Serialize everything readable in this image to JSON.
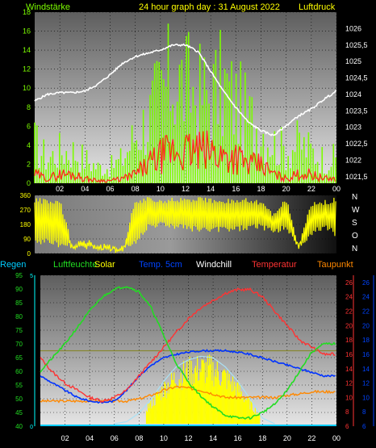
{
  "colors": {
    "wind": "#7CFC00",
    "gust_bar": "#7CFC00",
    "wind_dark": "#FF2A1A",
    "pressure": "#FFFFFF",
    "direction": "#FFFF00",
    "humidity": "#22DD22",
    "solar": "#FFFF00",
    "temp5cm": "#0033FF",
    "windchill": "#FFFFFF",
    "temperature": "#FF3333",
    "dewpoint": "#FF8800",
    "rain": "#00CCFF",
    "olive": "#888833",
    "axis_left": "#00FFFF",
    "axis_temp": "#FF3333",
    "axis_t5": "#0044FF"
  },
  "panel1": {
    "label_wind": "Windstärke",
    "title": "24 hour graph day : 31 August 2022",
    "label_pressure": "Luftdruck"
  },
  "panel3": {
    "labels": {
      "rain": "Regen",
      "humidity": "Luftfeuchte",
      "solar": "Solar",
      "temp5cm": "Temp. 5cm",
      "windchill": "Windchill",
      "temperature": "Temperatur",
      "dewpoint": "Taupunkt"
    }
  },
  "chart_data": [
    {
      "type": "line",
      "title": "24 hour graph day : 31 August 2022",
      "x_label_ticks": [
        "02",
        "04",
        "06",
        "08",
        "10",
        "12",
        "14",
        "16",
        "18",
        "20",
        "22",
        "00"
      ],
      "xlim_hours": [
        0,
        24
      ],
      "y_left": {
        "label": "Windstärke",
        "ylim": [
          0,
          18
        ],
        "ticks": [
          "0",
          "2",
          "4",
          "6",
          "8",
          "10",
          "12",
          "14",
          "16",
          "18"
        ]
      },
      "y_right": {
        "label": "Luftdruck",
        "ylim": [
          1021.3,
          1026.5
        ],
        "ticks": [
          "1021,5",
          "1022",
          "1022,5",
          "1023",
          "1023,5",
          "1024",
          "1024,5",
          "1025",
          "1025,5",
          "1026"
        ]
      },
      "series": [
        {
          "name": "Windstärke",
          "hours": [
            0,
            1,
            2,
            3,
            4,
            5,
            6,
            7,
            8,
            9,
            10,
            11,
            12,
            13,
            14,
            15,
            16,
            17,
            18,
            19,
            20,
            21,
            22,
            23,
            24
          ],
          "gust": [
            5,
            3,
            4,
            4,
            3,
            2,
            2,
            3,
            6,
            8,
            11,
            13,
            12,
            11,
            11,
            12,
            10,
            8,
            7,
            5,
            4,
            5,
            4,
            3,
            3
          ],
          "mean": [
            1,
            0.5,
            1,
            1,
            0.5,
            0.3,
            0.3,
            0.5,
            1,
            2,
            3,
            3.5,
            3.5,
            3.5,
            3.5,
            3,
            3,
            2,
            2,
            1,
            0.5,
            1,
            1,
            0.5,
            0.5
          ]
        },
        {
          "name": "Luftdruck",
          "hours": [
            0,
            1,
            2,
            3,
            4,
            5,
            6,
            7,
            8,
            9,
            10,
            11,
            12,
            13,
            14,
            15,
            16,
            17,
            18,
            19,
            20,
            21,
            22,
            23,
            24
          ],
          "values": [
            1023.8,
            1024.0,
            1024.05,
            1024.05,
            1024.1,
            1024.3,
            1024.6,
            1024.95,
            1025.15,
            1025.25,
            1025.35,
            1025.5,
            1025.5,
            1025.3,
            1024.7,
            1024.1,
            1023.6,
            1023.15,
            1022.9,
            1022.75,
            1023.05,
            1023.35,
            1023.55,
            1023.85,
            1024.1
          ]
        }
      ]
    },
    {
      "type": "line",
      "y_label_ticks": [
        "0",
        "90",
        "180",
        "270",
        "360"
      ],
      "ylim": [
        0,
        360
      ],
      "compass_labels": [
        "N",
        "W",
        "S",
        "O",
        "N"
      ],
      "series": [
        {
          "hours": [
            0,
            1,
            2,
            3,
            4,
            5,
            6,
            7,
            8,
            9,
            10,
            11,
            12,
            13,
            14,
            15,
            16,
            17,
            18,
            19,
            20,
            21,
            22,
            23,
            24
          ],
          "direction_low": [
            40,
            60,
            30,
            30,
            20,
            20,
            20,
            20,
            40,
            150,
            160,
            150,
            140,
            130,
            120,
            130,
            130,
            140,
            150,
            120,
            140,
            20,
            100,
            150,
            100
          ],
          "direction_high": [
            350,
            340,
            340,
            60,
            100,
            60,
            40,
            40,
            340,
            350,
            350,
            350,
            350,
            350,
            350,
            350,
            340,
            350,
            330,
            250,
            350,
            60,
            330,
            340,
            350
          ]
        }
      ]
    },
    {
      "type": "line",
      "ylim_humidity": [
        40,
        95
      ],
      "humidity_ticks": [
        "40",
        "45",
        "50",
        "55",
        "60",
        "65",
        "70",
        "75",
        "80",
        "85",
        "90",
        "95"
      ],
      "rain_ticks": [
        "0",
        "5"
      ],
      "temperature_ticks": [
        "6",
        "8",
        "10",
        "12",
        "14",
        "16",
        "18",
        "20",
        "22",
        "24",
        "26"
      ],
      "temp5cm_ticks": [
        "6",
        "8",
        "10",
        "12",
        "14",
        "16",
        "18",
        "20",
        "22",
        "24",
        "26"
      ],
      "ylim_temperature": [
        6,
        27
      ],
      "series": [
        {
          "name": "Luftfeuchte",
          "hours": [
            0,
            1,
            2,
            3,
            4,
            5,
            6,
            7,
            8,
            9,
            10,
            11,
            12,
            13,
            14,
            15,
            16,
            17,
            18,
            19,
            20,
            21,
            22,
            23,
            24
          ],
          "values": [
            60,
            65,
            70,
            76,
            82,
            87,
            90,
            91,
            89,
            83,
            73,
            63,
            56,
            51,
            47,
            44,
            43,
            43,
            45,
            48,
            53,
            60,
            67,
            70,
            70
          ]
        },
        {
          "name": "Temperatur",
          "hours": [
            0,
            1,
            2,
            3,
            4,
            5,
            6,
            7,
            8,
            9,
            10,
            11,
            12,
            13,
            14,
            15,
            16,
            17,
            18,
            19,
            20,
            21,
            22,
            23,
            24
          ],
          "values": [
            15.5,
            13.5,
            12,
            11,
            10,
            9.5,
            10,
            11,
            13,
            15,
            17,
            19,
            21,
            22.5,
            23.5,
            24.5,
            25,
            25,
            24,
            22,
            20,
            18,
            17,
            16,
            16
          ]
        },
        {
          "name": "Temp. 5cm",
          "hours": [
            0,
            1,
            2,
            3,
            4,
            5,
            6,
            7,
            8,
            9,
            10,
            11,
            12,
            13,
            14,
            15,
            16,
            17,
            18,
            19,
            20,
            21,
            22,
            23,
            24
          ],
          "values": [
            13,
            12,
            11,
            10,
            9.5,
            9.3,
            9.5,
            11,
            13,
            14.5,
            15.5,
            16,
            16.3,
            16.5,
            16.5,
            16.5,
            16.3,
            16,
            15.5,
            15,
            14.5,
            14,
            13.5,
            13,
            13
          ]
        },
        {
          "name": "Taupunkt",
          "hours": [
            0,
            1,
            2,
            3,
            4,
            5,
            6,
            7,
            8,
            9,
            10,
            11,
            12,
            13,
            14,
            15,
            16,
            17,
            18,
            19,
            20,
            21,
            22,
            23,
            24
          ],
          "values": [
            9.5,
            9.5,
            9.5,
            9.5,
            9.5,
            9.5,
            9.5,
            9.5,
            9.8,
            10.3,
            11,
            11.5,
            11.3,
            11,
            10.5,
            10,
            10,
            10,
            10,
            10,
            10.3,
            10.5,
            10.8,
            10.8,
            10.8
          ]
        },
        {
          "name": "Solar",
          "hours": [
            6,
            7,
            8,
            9,
            10,
            11,
            12,
            13,
            14,
            15,
            16,
            17,
            18,
            19
          ],
          "values": [
            0,
            3,
            15,
            35,
            60,
            80,
            90,
            95,
            93,
            80,
            60,
            35,
            8,
            0
          ]
        },
        {
          "name": "Regen",
          "hours": [
            0,
            24
          ],
          "values": [
            0,
            0
          ]
        }
      ]
    }
  ]
}
